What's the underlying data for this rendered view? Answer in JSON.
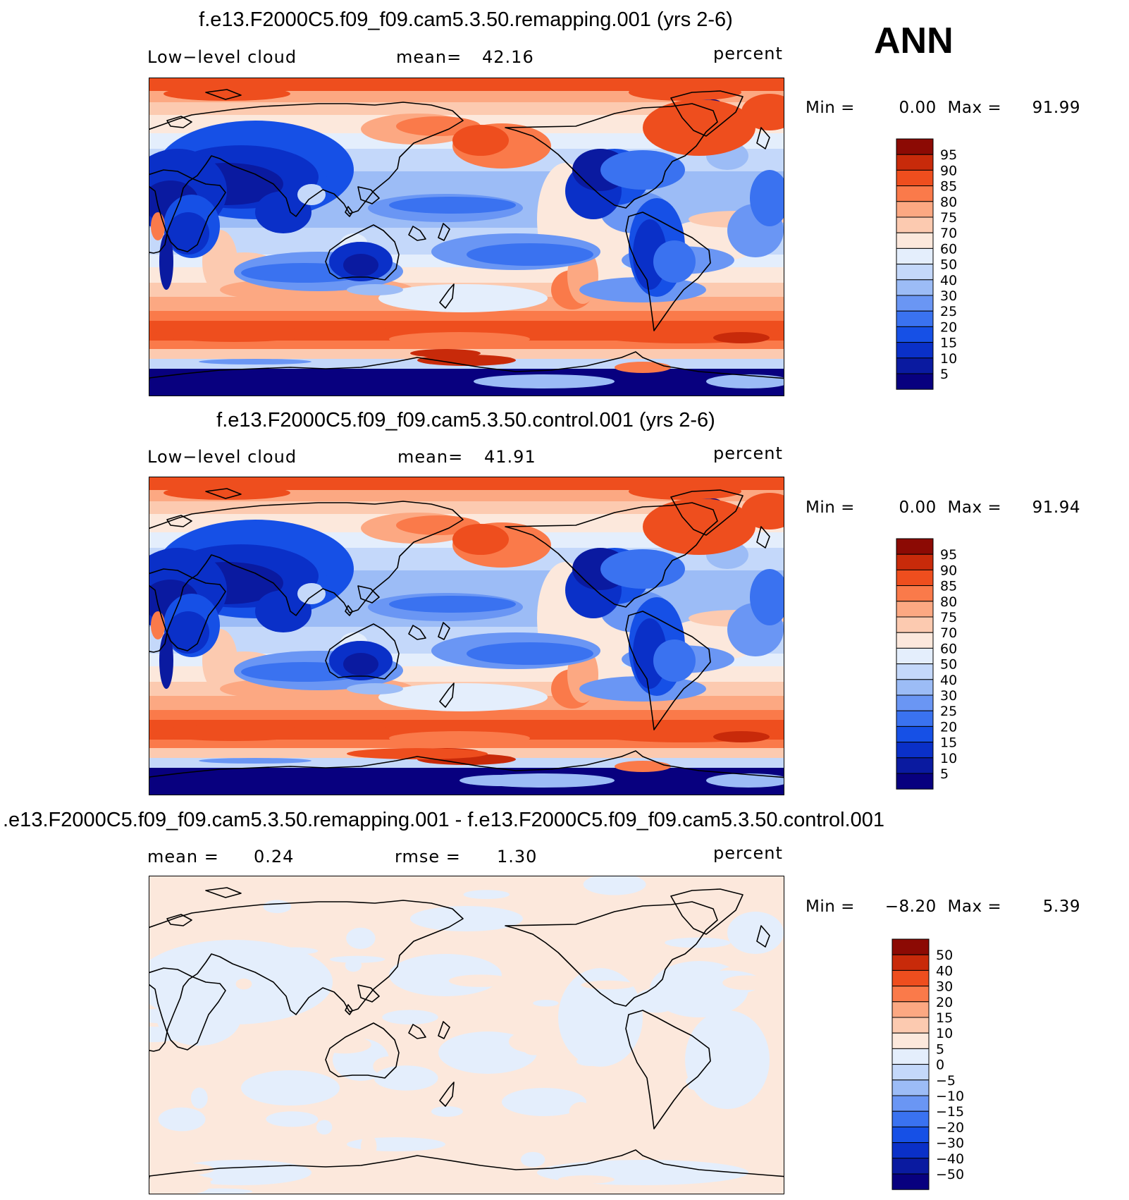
{
  "season": "ANN",
  "panels": [
    {
      "title": "f.e13.F2000C5.f09_f09.cam5.3.50.remapping.001 (yrs 2-6)",
      "left_label": "Low−level cloud",
      "mid_label": "mean=",
      "mid_value": "42.16",
      "units": "percent",
      "min_label": "Min =",
      "min_value": "0.00",
      "max_label": "Max =",
      "max_value": "91.99",
      "colorbar": [
        "95",
        "90",
        "85",
        "80",
        "75",
        "70",
        "60",
        "50",
        "40",
        "30",
        "25",
        "20",
        "15",
        "10",
        "5"
      ],
      "palette": "abs"
    },
    {
      "title": "f.e13.F2000C5.f09_f09.cam5.3.50.control.001 (yrs 2-6)",
      "left_label": "Low−level cloud",
      "mid_label": "mean=",
      "mid_value": "41.91",
      "units": "percent",
      "min_label": "Min =",
      "min_value": "0.00",
      "max_label": "Max =",
      "max_value": "91.94",
      "colorbar": [
        "95",
        "90",
        "85",
        "80",
        "75",
        "70",
        "60",
        "50",
        "40",
        "30",
        "25",
        "20",
        "15",
        "10",
        "5"
      ],
      "palette": "abs"
    },
    {
      "title": ".e13.F2000C5.f09_f09.cam5.3.50.remapping.001 - f.e13.F2000C5.f09_f09.cam5.3.50.control.001",
      "left_label": "mean =",
      "left_value": "0.24",
      "mid_label": "rmse =",
      "mid_value": "1.30",
      "units": "percent",
      "min_label": "Min =",
      "min_value": "−8.20",
      "max_label": "Max =",
      "max_value": "5.39",
      "colorbar": [
        "50",
        "40",
        "30",
        "20",
        "15",
        "10",
        "5",
        "0",
        "−5",
        "−10",
        "−15",
        "−20",
        "−30",
        "−40",
        "−50"
      ],
      "palette": "diff"
    }
  ],
  "colors": {
    "levels_16": [
      "#08007f",
      "#0a1aa0",
      "#0a30c8",
      "#1650e6",
      "#3a72f0",
      "#6a96f4",
      "#9cbcf6",
      "#c4d8fa",
      "#e4eefc",
      "#fce8dc",
      "#fccab0",
      "#fca882",
      "#fa7a4a",
      "#ee4e1e",
      "#c82a0a",
      "#8c0a04"
    ]
  },
  "chart_data": [
    {
      "type": "heatmap",
      "title": "f.e13.F2000C5.f09_f09.cam5.3.50.remapping.001 (yrs 2-6)",
      "variable": "Low−level cloud",
      "units": "percent",
      "mean": 42.16,
      "min": 0.0,
      "max": 91.99,
      "contour_levels": [
        5,
        10,
        15,
        20,
        25,
        30,
        40,
        50,
        60,
        70,
        75,
        80,
        85,
        90,
        95
      ]
    },
    {
      "type": "heatmap",
      "title": "f.e13.F2000C5.f09_f09.cam5.3.50.control.001 (yrs 2-6)",
      "variable": "Low−level cloud",
      "units": "percent",
      "mean": 41.91,
      "min": 0.0,
      "max": 91.94,
      "contour_levels": [
        5,
        10,
        15,
        20,
        25,
        30,
        40,
        50,
        60,
        70,
        75,
        80,
        85,
        90,
        95
      ]
    },
    {
      "type": "heatmap",
      "title": ".e13.F2000C5.f09_f09.cam5.3.50.remapping.001 - f.e13.F2000C5.f09_f09.cam5.3.50.control.001",
      "units": "percent",
      "mean": 0.24,
      "rmse": 1.3,
      "min": -8.2,
      "max": 5.39,
      "contour_levels": [
        -50,
        -40,
        -30,
        -20,
        -15,
        -10,
        -5,
        0,
        5,
        10,
        15,
        20,
        30,
        40,
        50
      ]
    }
  ]
}
